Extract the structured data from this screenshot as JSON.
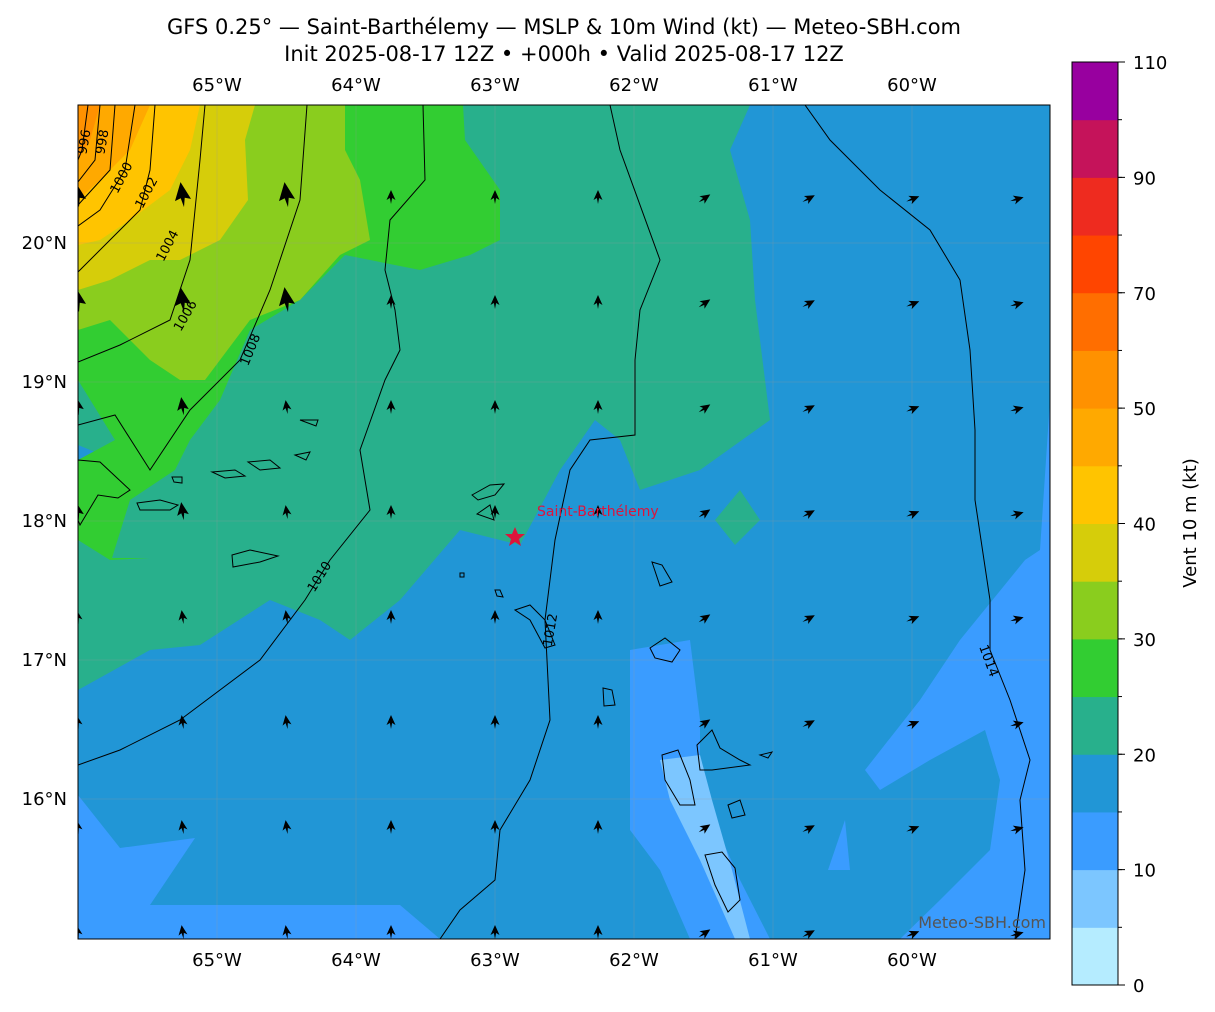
{
  "header": {
    "title": "GFS 0.25° — Saint-Barthélemy — MSLP & 10m Wind (kt) — Meteo-SBH.com",
    "subtitle": "Init 2025-08-17 12Z • +000h • Valid 2025-08-17 12Z"
  },
  "map": {
    "lon_labels": [
      "65°W",
      "64°W",
      "63°W",
      "62°W",
      "61°W",
      "60°W"
    ],
    "lat_labels": [
      "20°N",
      "19°N",
      "18°N",
      "17°N",
      "16°N"
    ],
    "contour_labels": [
      "996",
      "998",
      "1000",
      "1002",
      "1004",
      "1006",
      "1008",
      "1010",
      "1012",
      "1014"
    ],
    "marker_label": "Saint-Barthélemy",
    "watermark": "Meteo-SBH.com"
  },
  "colorbar": {
    "label": "Vent 10 m (kt)",
    "levels": [
      0,
      5,
      10,
      15,
      20,
      25,
      30,
      35,
      40,
      45,
      50,
      60,
      70,
      80,
      90,
      100,
      110
    ],
    "colors": [
      "#b5ecff",
      "#7cc6ff",
      "#3a9cff",
      "#2196d6",
      "#28b08c",
      "#32cd32",
      "#8acd1e",
      "#d6cd0a",
      "#ffc400",
      "#ffa900",
      "#ff9100",
      "#ff6e00",
      "#ff4500",
      "#ee2b1f",
      "#c5135a",
      "#98009f"
    ],
    "ticks": [
      0,
      10,
      20,
      30,
      40,
      50,
      70,
      90,
      110
    ]
  }
}
